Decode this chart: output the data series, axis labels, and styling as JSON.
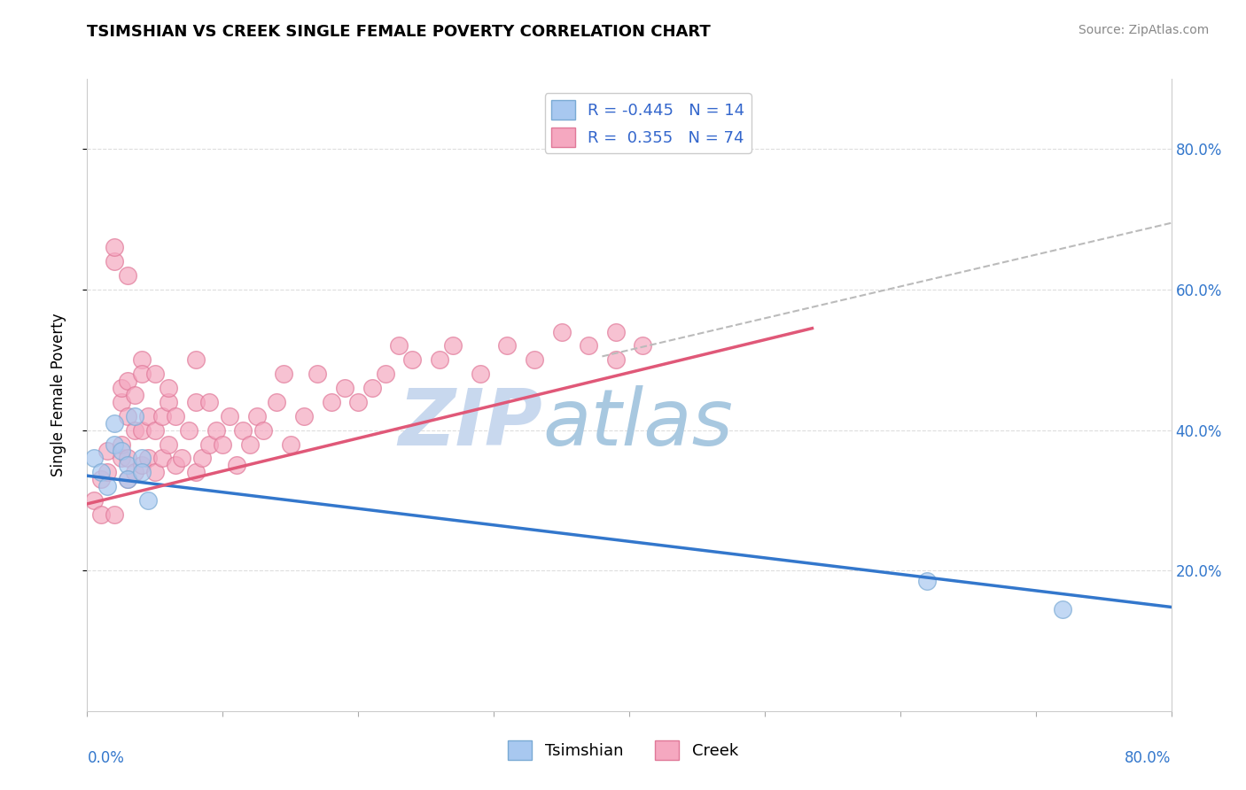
{
  "title": "TSIMSHIAN VS CREEK SINGLE FEMALE POVERTY CORRELATION CHART",
  "source": "Source: ZipAtlas.com",
  "ylabel": "Single Female Poverty",
  "xlim": [
    0.0,
    0.8
  ],
  "ylim": [
    0.0,
    0.9
  ],
  "background_color": "#ffffff",
  "grid_color": "#dddddd",
  "tsimshian_color": "#a8c8f0",
  "tsimshian_edge": "#7aaad4",
  "creek_color": "#f5a8c0",
  "creek_edge": "#e07898",
  "tsimshian_line_color": "#3377cc",
  "creek_line_color": "#e05878",
  "dash_line_color": "#bbbbbb",
  "watermark_zip_color": "#c8d8ee",
  "watermark_atlas_color": "#a0c0dc",
  "legend_r_tsimshian": "-0.445",
  "legend_n_tsimshian": "14",
  "legend_r_creek": "0.355",
  "legend_n_creek": "74",
  "tsimshian_x": [
    0.005,
    0.01,
    0.015,
    0.02,
    0.02,
    0.025,
    0.03,
    0.03,
    0.035,
    0.04,
    0.04,
    0.045,
    0.62,
    0.72
  ],
  "tsimshian_y": [
    0.36,
    0.34,
    0.32,
    0.41,
    0.38,
    0.37,
    0.35,
    0.33,
    0.42,
    0.36,
    0.34,
    0.3,
    0.185,
    0.145
  ],
  "creek_x": [
    0.005,
    0.01,
    0.01,
    0.015,
    0.015,
    0.02,
    0.02,
    0.02,
    0.025,
    0.025,
    0.025,
    0.025,
    0.03,
    0.03,
    0.03,
    0.03,
    0.03,
    0.035,
    0.035,
    0.035,
    0.04,
    0.04,
    0.04,
    0.04,
    0.045,
    0.045,
    0.05,
    0.05,
    0.05,
    0.055,
    0.055,
    0.06,
    0.06,
    0.06,
    0.065,
    0.065,
    0.07,
    0.075,
    0.08,
    0.08,
    0.08,
    0.085,
    0.09,
    0.09,
    0.095,
    0.1,
    0.105,
    0.11,
    0.115,
    0.12,
    0.125,
    0.13,
    0.14,
    0.145,
    0.15,
    0.16,
    0.17,
    0.18,
    0.19,
    0.2,
    0.21,
    0.22,
    0.23,
    0.24,
    0.26,
    0.27,
    0.29,
    0.31,
    0.33,
    0.35,
    0.37,
    0.39,
    0.39,
    0.41
  ],
  "creek_y": [
    0.3,
    0.33,
    0.28,
    0.34,
    0.37,
    0.64,
    0.66,
    0.28,
    0.36,
    0.38,
    0.44,
    0.46,
    0.33,
    0.36,
    0.42,
    0.47,
    0.62,
    0.34,
    0.4,
    0.45,
    0.35,
    0.4,
    0.5,
    0.48,
    0.36,
    0.42,
    0.34,
    0.4,
    0.48,
    0.36,
    0.42,
    0.38,
    0.44,
    0.46,
    0.35,
    0.42,
    0.36,
    0.4,
    0.34,
    0.44,
    0.5,
    0.36,
    0.38,
    0.44,
    0.4,
    0.38,
    0.42,
    0.35,
    0.4,
    0.38,
    0.42,
    0.4,
    0.44,
    0.48,
    0.38,
    0.42,
    0.48,
    0.44,
    0.46,
    0.44,
    0.46,
    0.48,
    0.52,
    0.5,
    0.5,
    0.52,
    0.48,
    0.52,
    0.5,
    0.54,
    0.52,
    0.5,
    0.54,
    0.52
  ],
  "tsimshian_line_x0": 0.0,
  "tsimshian_line_x1": 0.8,
  "tsimshian_line_y0": 0.335,
  "tsimshian_line_y1": 0.148,
  "creek_line_x0": 0.0,
  "creek_line_x1": 0.535,
  "creek_line_y0": 0.295,
  "creek_line_y1": 0.545,
  "dash_line_x0": 0.38,
  "dash_line_x1": 0.8,
  "dash_line_y0": 0.505,
  "dash_line_y1": 0.695,
  "ytick_positions": [
    0.2,
    0.4,
    0.6,
    0.8
  ],
  "ytick_labels": [
    "20.0%",
    "40.0%",
    "60.0%",
    "80.0%"
  ]
}
